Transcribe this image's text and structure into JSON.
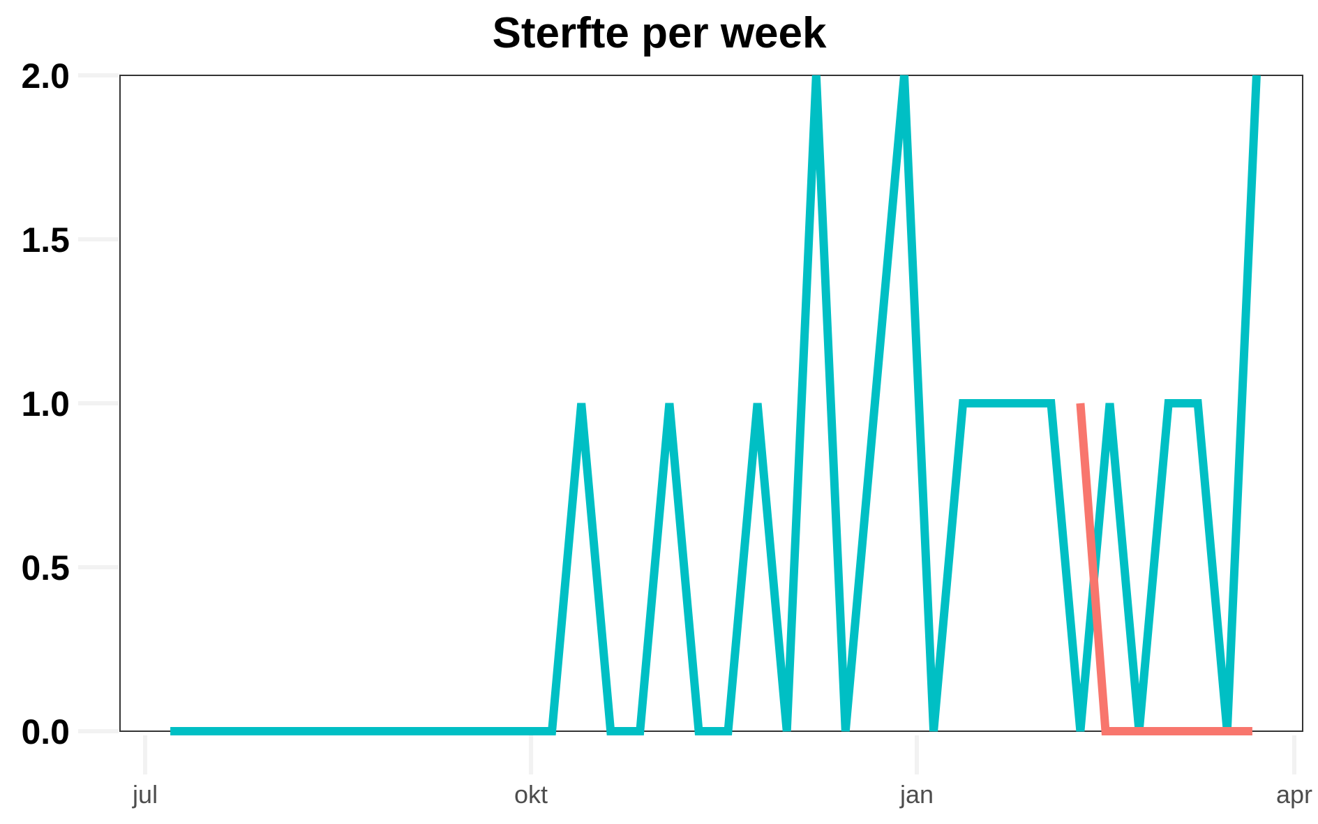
{
  "chart_data": {
    "type": "line",
    "title": "Sterfte per week",
    "xlabel": "",
    "ylabel": "",
    "ylim": [
      0,
      2
    ],
    "y_ticks": [
      "0.0",
      "0.5",
      "1.0",
      "1.5",
      "2.0"
    ],
    "y_tick_values": [
      0,
      0.5,
      1.0,
      1.5,
      2.0
    ],
    "x_ticks": [
      "jul",
      "okt",
      "jan",
      "apr"
    ],
    "x_tick_dates": [
      "2020-07-01",
      "2020-10-01",
      "2021-01-01",
      "2021-04-01"
    ],
    "xlim": [
      "2020-06-25",
      "2021-04-03"
    ],
    "grid": false,
    "legend": "none",
    "series": [
      {
        "color": "#00bfc4",
        "points": [
          [
            "2020-07-07",
            0
          ],
          [
            "2020-07-14",
            0
          ],
          [
            "2020-07-21",
            0
          ],
          [
            "2020-07-28",
            0
          ],
          [
            "2020-08-04",
            0
          ],
          [
            "2020-08-11",
            0
          ],
          [
            "2020-08-18",
            0
          ],
          [
            "2020-08-25",
            0
          ],
          [
            "2020-09-01",
            0
          ],
          [
            "2020-09-08",
            0
          ],
          [
            "2020-09-15",
            0
          ],
          [
            "2020-09-22",
            0
          ],
          [
            "2020-09-29",
            0
          ],
          [
            "2020-10-06",
            0
          ],
          [
            "2020-10-13",
            1
          ],
          [
            "2020-10-20",
            0
          ],
          [
            "2020-10-27",
            0
          ],
          [
            "2020-11-03",
            1
          ],
          [
            "2020-11-10",
            0
          ],
          [
            "2020-11-17",
            0
          ],
          [
            "2020-11-24",
            1
          ],
          [
            "2020-12-01",
            0
          ],
          [
            "2020-12-08",
            2
          ],
          [
            "2020-12-15",
            0
          ],
          [
            "2020-12-22",
            1
          ],
          [
            "2020-12-29",
            2
          ],
          [
            "2021-01-05",
            0
          ],
          [
            "2021-01-12",
            1
          ],
          [
            "2021-01-19",
            1
          ],
          [
            "2021-01-26",
            1
          ],
          [
            "2021-02-02",
            1
          ],
          [
            "2021-02-09",
            0
          ],
          [
            "2021-02-16",
            1
          ],
          [
            "2021-02-23",
            0
          ],
          [
            "2021-03-02",
            1
          ],
          [
            "2021-03-09",
            1
          ],
          [
            "2021-03-16",
            0
          ],
          [
            "2021-03-23",
            2
          ]
        ]
      },
      {
        "color": "#f8766d",
        "points": [
          [
            "2021-02-09",
            1
          ],
          [
            "2021-02-15",
            0
          ],
          [
            "2021-02-22",
            0
          ],
          [
            "2021-03-01",
            0
          ],
          [
            "2021-03-08",
            0
          ],
          [
            "2021-03-15",
            0
          ],
          [
            "2021-03-22",
            0
          ]
        ]
      }
    ]
  }
}
